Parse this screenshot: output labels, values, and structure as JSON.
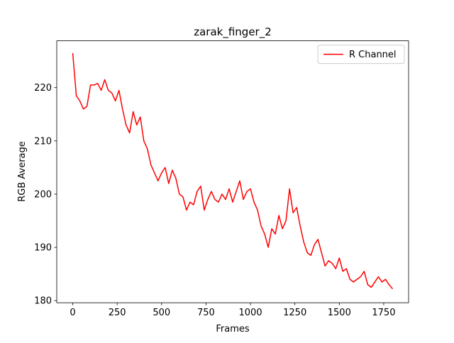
{
  "chart_data": {
    "type": "line",
    "title": "zarak_finger_2",
    "xlabel": "Frames",
    "ylabel": "RGB Average",
    "x": [
      0,
      20,
      40,
      60,
      80,
      100,
      120,
      140,
      160,
      180,
      200,
      220,
      240,
      260,
      280,
      300,
      320,
      340,
      360,
      380,
      400,
      420,
      440,
      460,
      480,
      500,
      520,
      540,
      560,
      580,
      600,
      620,
      640,
      660,
      680,
      700,
      720,
      740,
      760,
      780,
      800,
      820,
      840,
      860,
      880,
      900,
      920,
      940,
      960,
      980,
      1000,
      1020,
      1040,
      1060,
      1080,
      1100,
      1120,
      1140,
      1160,
      1180,
      1200,
      1220,
      1240,
      1260,
      1280,
      1300,
      1320,
      1340,
      1360,
      1380,
      1400,
      1420,
      1440,
      1460,
      1480,
      1500,
      1520,
      1540,
      1560,
      1580,
      1600,
      1620,
      1640,
      1660,
      1680,
      1700,
      1720,
      1740,
      1760,
      1780,
      1800
    ],
    "series": [
      {
        "name": "R Channel",
        "color": "#ff0000",
        "values": [
          226.5,
          218.5,
          217.5,
          216,
          216.5,
          220.5,
          220.5,
          220.8,
          219.5,
          221.5,
          219.5,
          219,
          217.5,
          219.5,
          216,
          213,
          211.5,
          215.5,
          213,
          214.5,
          210,
          208.5,
          205.5,
          204,
          202.5,
          204,
          205,
          202,
          204.5,
          203,
          200,
          199.5,
          197,
          198.5,
          198,
          200.5,
          201.5,
          197,
          199,
          200.5,
          199,
          198.5,
          200,
          199,
          201,
          198.5,
          200.5,
          202.5,
          199,
          200.5,
          201,
          198.5,
          197,
          194,
          192.5,
          190,
          193.5,
          192.5,
          196,
          193.5,
          195,
          201,
          196.5,
          197.5,
          194,
          191,
          189,
          188.5,
          190.5,
          191.5,
          189,
          186.5,
          187.5,
          187,
          186,
          188,
          185.5,
          186,
          184,
          183.5,
          184,
          184.5,
          185.5,
          183,
          182.5,
          183.5,
          184.5,
          183.5,
          184,
          183,
          182.2
        ]
      }
    ],
    "xlim": [
      -90,
      1890
    ],
    "ylim": [
      179.6,
      228.8
    ],
    "xticks": [
      0,
      250,
      500,
      750,
      1000,
      1250,
      1500,
      1750
    ],
    "yticks": [
      180,
      190,
      200,
      210,
      220
    ],
    "legend": "upper right"
  }
}
